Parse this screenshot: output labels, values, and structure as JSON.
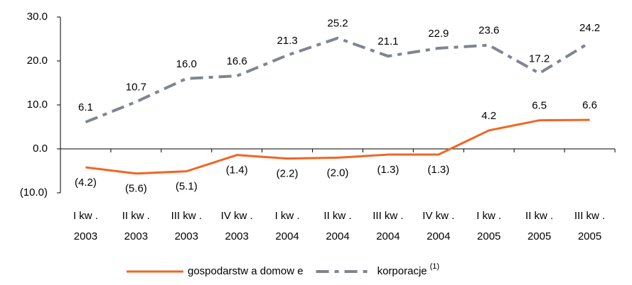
{
  "chart_data": {
    "type": "line",
    "categories": [
      [
        "I kw .",
        "2003"
      ],
      [
        "II kw .",
        "2003"
      ],
      [
        "III kw .",
        "2003"
      ],
      [
        "IV kw .",
        "2003"
      ],
      [
        "I kw .",
        "2004"
      ],
      [
        "II kw .",
        "2004"
      ],
      [
        "III kw .",
        "2004"
      ],
      [
        "IV kw .",
        "2004"
      ],
      [
        "I kw .",
        "2005"
      ],
      [
        "II kw .",
        "2005"
      ],
      [
        "III kw .",
        "2005"
      ]
    ],
    "series": [
      {
        "name": "gospodarstw a domow e",
        "color": "#f26522",
        "dash": false,
        "values": [
          -4.2,
          -5.6,
          -5.1,
          -1.4,
          -2.2,
          -2.0,
          -1.3,
          -1.3,
          4.2,
          6.5,
          6.6
        ],
        "value_labels": [
          "(4.2)",
          "(5.6)",
          "(5.1)",
          "(1.4)",
          "(2.2)",
          "(2.0)",
          "(1.3)",
          "(1.3)",
          "4.2",
          "6.5",
          "6.6"
        ]
      },
      {
        "name": "korporacje",
        "note": "(1)",
        "color": "#7f8591",
        "dash": true,
        "values": [
          6.1,
          10.7,
          16.0,
          16.6,
          21.3,
          25.2,
          21.1,
          22.9,
          23.6,
          17.2,
          24.2
        ],
        "value_labels": [
          "6.1",
          "10.7",
          "16.0",
          "16.6",
          "21.3",
          "25.2",
          "21.1",
          "22.9",
          "23.6",
          "17.2",
          "24.2"
        ]
      }
    ],
    "ylim": [
      -10,
      30
    ],
    "yticks": [
      {
        "value": 30,
        "label": "30.0"
      },
      {
        "value": 20,
        "label": "20.0"
      },
      {
        "value": 10,
        "label": "10.0"
      },
      {
        "value": 0,
        "label": "0.0"
      },
      {
        "value": -10,
        "label": "(10.0)"
      }
    ],
    "legend": "bottom"
  }
}
